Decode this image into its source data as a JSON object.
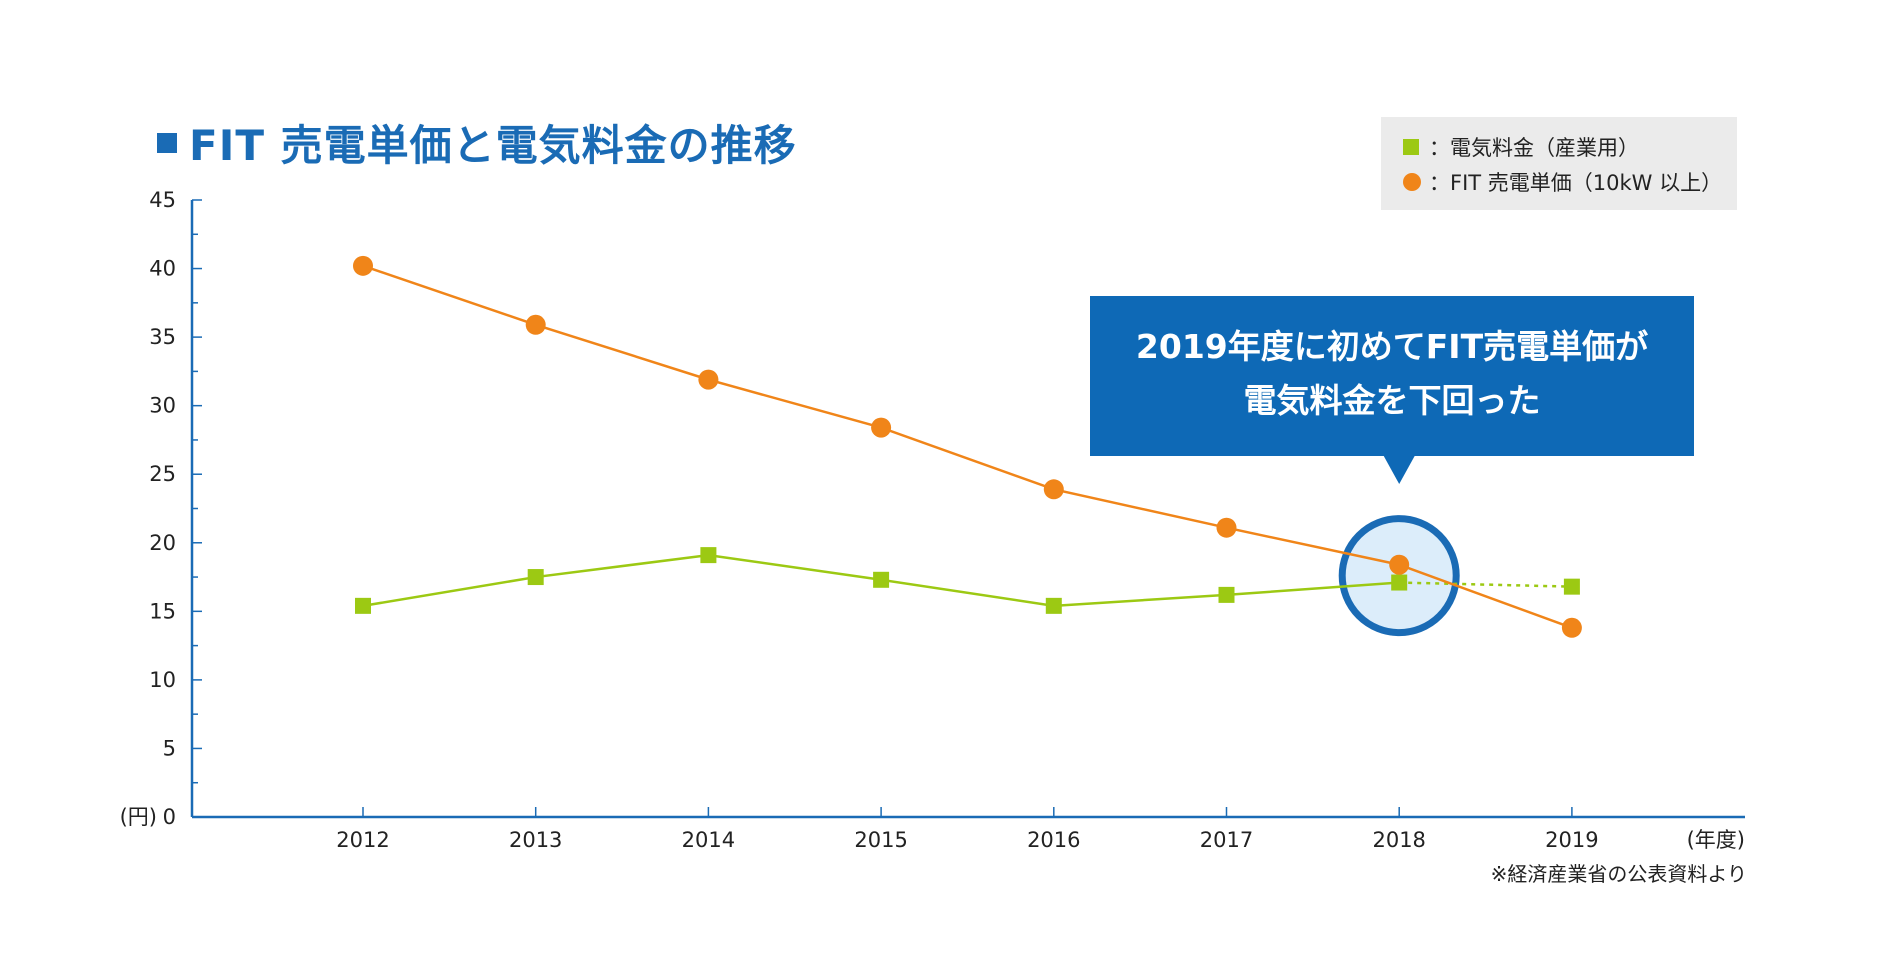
{
  "title": "FIT 売電単価と電気料金の推移",
  "legend": {
    "electricity": "：電気料金（産業用）",
    "fit": "：FIT 売電単価（10kW 以上）"
  },
  "callout": {
    "line1": "2019年度に初めてFIT売電単価が",
    "line2": "電気料金を下回った"
  },
  "source": "※経済産業省の公表資料より",
  "colors": {
    "accent": "#1a6bb5",
    "fit": "#f08519",
    "electricity": "#9cc913",
    "callout_bg": "#0e69b6",
    "highlight_fill": "#dcedfa",
    "legend_bg": "#ebebeb"
  },
  "chart_data": {
    "type": "line",
    "categories": [
      "2012",
      "2013",
      "2014",
      "2015",
      "2016",
      "2017",
      "2018",
      "2019"
    ],
    "ylim": [
      0,
      45
    ],
    "yticks": [
      0,
      5,
      10,
      15,
      20,
      25,
      30,
      35,
      40,
      45
    ],
    "ylabel": "(円)",
    "xlabel": "(年度)",
    "grid": false,
    "legend_position": "top-right",
    "series": [
      {
        "name": "FIT 売電単価（10kW 以上）",
        "key": "fit",
        "marker": "circle",
        "values": [
          40.2,
          35.9,
          31.9,
          28.4,
          23.9,
          21.1,
          18.4,
          13.8
        ]
      },
      {
        "name": "電気料金（産業用）",
        "key": "electricity",
        "marker": "square",
        "values": [
          15.4,
          17.5,
          19.1,
          17.3,
          15.4,
          16.2,
          17.1,
          16.8
        ],
        "dashed_from_index": 6
      }
    ],
    "highlight_category": "2018"
  }
}
